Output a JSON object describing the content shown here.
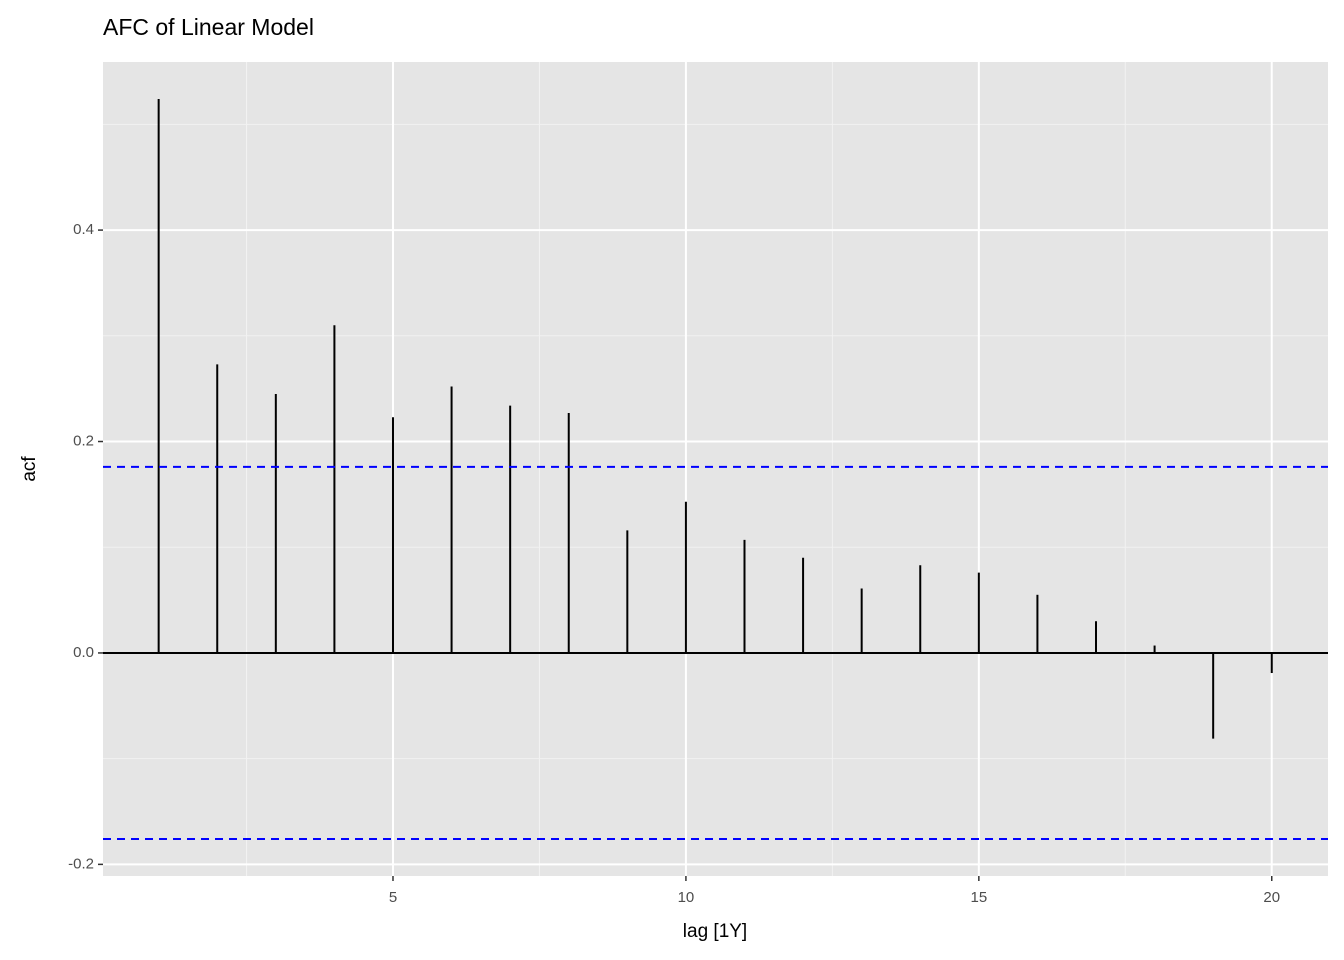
{
  "chart_data": {
    "type": "acf",
    "title": "AFC of Linear Model",
    "x_label": "lag [1Y]",
    "y_label": "acf",
    "x": [
      1,
      2,
      3,
      4,
      5,
      6,
      7,
      8,
      9,
      10,
      11,
      12,
      13,
      14,
      15,
      16,
      17,
      18,
      19,
      20
    ],
    "values": [
      0.524,
      0.273,
      0.245,
      0.31,
      0.223,
      0.252,
      0.234,
      0.227,
      0.116,
      0.143,
      0.107,
      0.09,
      0.061,
      0.083,
      0.076,
      0.055,
      0.03,
      0.007,
      -0.081,
      -0.019
    ],
    "color": "#000000",
    "ci_lines": [
      0.176,
      -0.176
    ],
    "ci_color": "#0000ff",
    "xlim": [
      0.05,
      20.96
    ],
    "ylim": [
      -0.211,
      0.559
    ],
    "xticks": [
      5,
      10,
      15,
      20
    ],
    "yticks": [
      -0.2,
      {
        "value": 0,
        "label": "0.0"
      },
      0.2,
      0.4
    ],
    "grid": true
  }
}
